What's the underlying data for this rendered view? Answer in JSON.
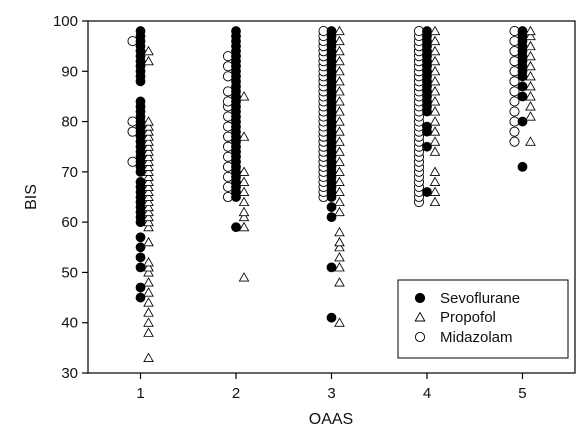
{
  "chart_data": {
    "type": "scatter",
    "title": "",
    "xlabel": "OAAS",
    "ylabel": "BIS",
    "xlim": [
      0.45,
      5.55
    ],
    "ylim": [
      30,
      100
    ],
    "x_ticks": [
      1,
      2,
      3,
      4,
      5
    ],
    "y_ticks": [
      30,
      40,
      50,
      60,
      70,
      80,
      90,
      100
    ],
    "grid": false,
    "legend_position": "bottom-right",
    "series": [
      {
        "name": "Sevoflurane",
        "marker": "filled-circle",
        "points": [
          {
            "x": 1,
            "ys": [
              45,
              47,
              51,
              53,
              55,
              57,
              60,
              61,
              62,
              63,
              64,
              65,
              66,
              67,
              68,
              70,
              71,
              72,
              73,
              74,
              75,
              76,
              77,
              78,
              79,
              80,
              81,
              82,
              83,
              84,
              88,
              89,
              90,
              91,
              92,
              93,
              94,
              95,
              96,
              97,
              98
            ]
          },
          {
            "x": 2,
            "ys": [
              59,
              65,
              66,
              67,
              68,
              69,
              70,
              71,
              72,
              73,
              74,
              75,
              76,
              77,
              78,
              79,
              80,
              81,
              82,
              83,
              84,
              85,
              86,
              87,
              88,
              89,
              90,
              91,
              92,
              93,
              94,
              95,
              96,
              97,
              98
            ]
          },
          {
            "x": 3,
            "ys": [
              41,
              51,
              61,
              63,
              65,
              66,
              67,
              68,
              69,
              70,
              71,
              72,
              73,
              74,
              75,
              76,
              77,
              78,
              79,
              80,
              81,
              82,
              83,
              84,
              85,
              86,
              87,
              88,
              89,
              90,
              91,
              92,
              93,
              94,
              95,
              96,
              97,
              98
            ]
          },
          {
            "x": 4,
            "ys": [
              66,
              75,
              78,
              79,
              82,
              83,
              84,
              85,
              86,
              87,
              88,
              89,
              90,
              91,
              92,
              93,
              94,
              95,
              96,
              97,
              98
            ]
          },
          {
            "x": 5,
            "ys": [
              71,
              80,
              85,
              87,
              89,
              90,
              91,
              92,
              93,
              94,
              95,
              96,
              97,
              98
            ]
          }
        ]
      },
      {
        "name": "Propofol",
        "marker": "open-triangle",
        "points": [
          {
            "x": 1,
            "ys": [
              33,
              38,
              40,
              42,
              44,
              46,
              48,
              50,
              51,
              52,
              56,
              59,
              60,
              61,
              62,
              63,
              64,
              65,
              66,
              67,
              68,
              69,
              70,
              71,
              72,
              73,
              74,
              75,
              76,
              77,
              78,
              79,
              80,
              92,
              94
            ]
          },
          {
            "x": 2,
            "ys": [
              49,
              59,
              61,
              62,
              64,
              66,
              68,
              70,
              77,
              85
            ]
          },
          {
            "x": 3,
            "ys": [
              40,
              48,
              51,
              53,
              55,
              56,
              58,
              62,
              64,
              66,
              68,
              70,
              72,
              74,
              76,
              78,
              80,
              82,
              84,
              86,
              88,
              90,
              92,
              94,
              96,
              98
            ]
          },
          {
            "x": 4,
            "ys": [
              64,
              66,
              68,
              70,
              74,
              76,
              78,
              80,
              82,
              84,
              86,
              88,
              90,
              92,
              94,
              96,
              98
            ]
          },
          {
            "x": 5,
            "ys": [
              76,
              81,
              83,
              85,
              87,
              89,
              91,
              93,
              95,
              97,
              98
            ]
          }
        ]
      },
      {
        "name": "Midazolam",
        "marker": "open-circle",
        "points": [
          {
            "x": 1,
            "ys": [
              72,
              78,
              80,
              96
            ]
          },
          {
            "x": 2,
            "ys": [
              65,
              67,
              69,
              71,
              73,
              75,
              77,
              79,
              81,
              83,
              84,
              86,
              89,
              91,
              93
            ]
          },
          {
            "x": 3,
            "ys": [
              65,
              66,
              67,
              68,
              69,
              70,
              71,
              72,
              73,
              74,
              75,
              76,
              77,
              78,
              79,
              80,
              81,
              82,
              83,
              84,
              85,
              86,
              87,
              88,
              89,
              90,
              91,
              92,
              93,
              94,
              95,
              96,
              97,
              98
            ]
          },
          {
            "x": 4,
            "ys": [
              64,
              65,
              66,
              67,
              68,
              69,
              70,
              71,
              72,
              73,
              74,
              75,
              76,
              77,
              78,
              79,
              80,
              81,
              82,
              83,
              84,
              85,
              86,
              87,
              88,
              89,
              90,
              91,
              92,
              93,
              94,
              95,
              96,
              97,
              98
            ]
          },
          {
            "x": 5,
            "ys": [
              76,
              78,
              80,
              82,
              84,
              86,
              88,
              90,
              92,
              94,
              96,
              98
            ]
          }
        ]
      }
    ]
  }
}
